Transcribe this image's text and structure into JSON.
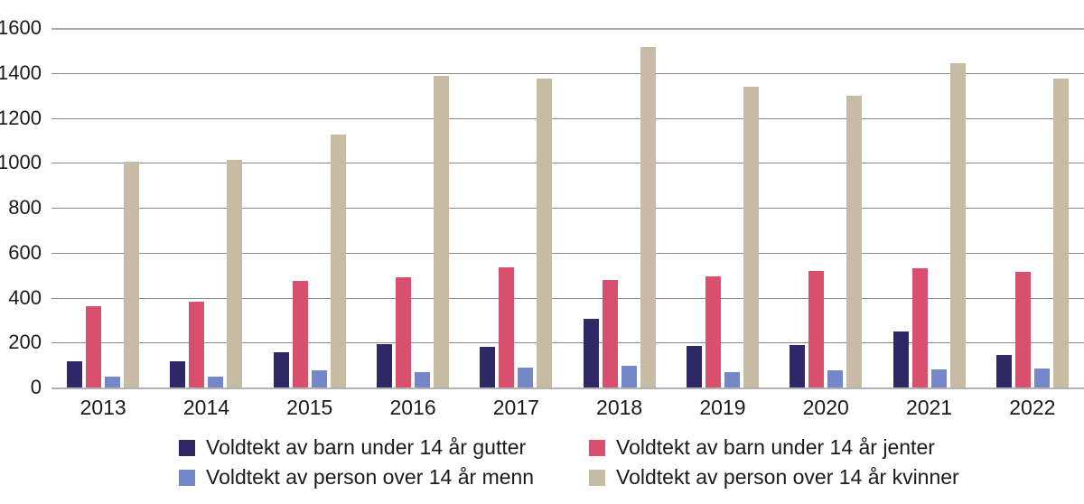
{
  "chart_data": {
    "type": "bar",
    "title": "",
    "xlabel": "",
    "ylabel": "",
    "categories": [
      "2013",
      "2014",
      "2015",
      "2016",
      "2017",
      "2018",
      "2019",
      "2020",
      "2021",
      "2022"
    ],
    "series": [
      {
        "key": "gutter",
        "name": "Voldtekt av barn under 14 år gutter",
        "color": "#2E2867",
        "values": [
          115,
          115,
          155,
          195,
          180,
          305,
          185,
          190,
          250,
          145
        ]
      },
      {
        "key": "jenter",
        "name": "Voldtekt av barn under 14 år jenter",
        "color": "#D94F6E",
        "values": [
          360,
          380,
          475,
          490,
          535,
          480,
          495,
          520,
          530,
          515
        ]
      },
      {
        "key": "menn",
        "name": "Voldtekt av person over 14 år menn",
        "color": "#7487C9",
        "values": [
          50,
          50,
          75,
          70,
          90,
          95,
          70,
          75,
          80,
          85
        ]
      },
      {
        "key": "kvinner",
        "name": "Voldtekt av person over 14 år kvinner",
        "color": "#C8BBA4",
        "values": [
          1005,
          1015,
          1125,
          1385,
          1375,
          1515,
          1340,
          1300,
          1445,
          1375
        ]
      }
    ],
    "ylim": [
      0,
      1600
    ],
    "yticks": [
      0,
      200,
      400,
      600,
      800,
      1000,
      1200,
      1400,
      1600
    ],
    "grid": true,
    "legend_position": "bottom"
  },
  "legend": {
    "items": [
      {
        "label": "Voldtekt av barn under 14 år gutter",
        "color": "#2E2867"
      },
      {
        "label": "Voldtekt av barn under 14 år jenter",
        "color": "#D94F6E"
      },
      {
        "label": "Voldtekt av person over 14 år menn",
        "color": "#7487C9"
      },
      {
        "label": "Voldtekt av person over 14 år kvinner",
        "color": "#C8BBA4"
      }
    ]
  },
  "colors": {
    "grid": "#8A8A8A",
    "top_line": "#A9A9A9",
    "axis": "#B3B3B3",
    "text": "#1A1A1A",
    "background": "#FFFFFF"
  }
}
